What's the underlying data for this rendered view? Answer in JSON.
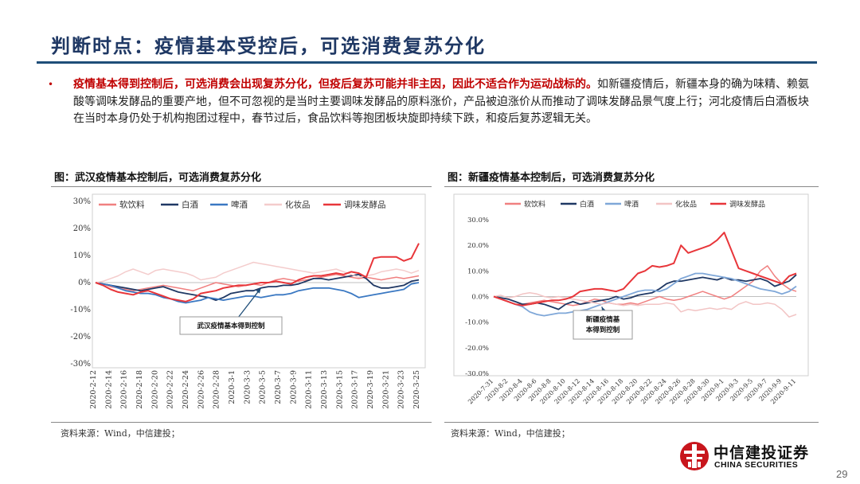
{
  "page": {
    "title": "判断时点：疫情基本受控后，可选消费复苏分化",
    "bullet_symbol": "•",
    "bullet_highlight": "疫情基本得到控制后，可选消费会出现复苏分化，但疫后复苏可能并非主因，因此不适合作为运动战标的。",
    "bullet_rest": "如新疆疫情后，新疆本身的确为味精、赖氨酸等调味发酵品的重要产地，但不可忽视的是当时主要调味发酵品的原料涨价，产品被迫涨价从而推动了调味发酵品景气度上行；河北疫情后白酒板块在当时本身仍处于机构抱团过程中，春节过后，食品饮料等抱团板块旋即持续下跌，和疫后复苏逻辑无关。",
    "page_number": "29",
    "logo": {
      "cn": "中信建投证券",
      "en": "CHINA SECURITIES"
    }
  },
  "figures": {
    "left": {
      "title": "图：武汉疫情基本控制后，可选消费复苏分化",
      "source": "资料来源：Wind，中信建投；"
    },
    "right": {
      "title": "图：新疆疫情基本控制后，可选消费复苏分化",
      "source": "资料来源：Wind，中信建投；"
    }
  },
  "chart_data": [
    {
      "type": "line",
      "ylim": [
        -30,
        30
      ],
      "yticks": [
        -30,
        -20,
        -10,
        0,
        10,
        20,
        30
      ],
      "yticklabels": [
        "-30%",
        "-20%",
        "-10%",
        "0%",
        "10%",
        "20%",
        "30%"
      ],
      "xticklabels": [
        "2020-2-12",
        "2020-2-14",
        "2020-2-16",
        "2020-2-18",
        "2020-2-20",
        "2020-2-22",
        "2020-2-24",
        "2020-2-26",
        "2020-2-28",
        "2020-3-1",
        "2020-3-3",
        "2020-3-5",
        "2020-3-7",
        "2020-3-9",
        "2020-3-11",
        "2020-3-13",
        "2020-3-15",
        "2020-3-17",
        "2020-3-19",
        "2020-3-21",
        "2020-3-23",
        "2020-3-25"
      ],
      "x": [
        0,
        1,
        2,
        3,
        4,
        5,
        6,
        7,
        8,
        9,
        10,
        11,
        12,
        13,
        14,
        15,
        16,
        17,
        18,
        19,
        20,
        21,
        22,
        23,
        24,
        25,
        26,
        27,
        28,
        29,
        30,
        31,
        32,
        33,
        34,
        35,
        36,
        37,
        38,
        39,
        40,
        41,
        42,
        43
      ],
      "legend_position": "top",
      "grid": false,
      "annotation": {
        "text": "武汉疫情基本得到控制",
        "at_x": 22,
        "at_y": -2.0
      },
      "series": [
        {
          "name": "软饮料",
          "color": "#f08080",
          "width": 1.5,
          "values": [
            0,
            -0.5,
            -1.5,
            -2,
            -2.5,
            -3,
            -2.5,
            -2,
            -1.5,
            -1,
            -1.5,
            -2,
            -2.5,
            -3,
            -2,
            -1,
            0,
            -0.5,
            -1,
            -1.5,
            -1,
            -0.5,
            -1,
            0,
            1,
            1.5,
            1,
            0.5,
            1,
            1.5,
            2,
            2.5,
            3,
            2.5,
            2,
            1.5,
            2,
            1.5,
            1,
            1.5,
            2,
            1.5,
            2,
            2.5
          ]
        },
        {
          "name": "白酒",
          "color": "#1f3864",
          "width": 1.8,
          "values": [
            0,
            -0.5,
            -1,
            -1.5,
            -2,
            -2.5,
            -3,
            -2.5,
            -2,
            -1.5,
            -2.5,
            -3.5,
            -4,
            -4.5,
            -5,
            -5.5,
            -6.5,
            -5.5,
            -4,
            -3.5,
            -3,
            -3,
            -2,
            -1.5,
            -1.5,
            -1,
            -1,
            -0.5,
            0.5,
            1.5,
            1.5,
            1,
            1.5,
            2,
            2.5,
            3,
            1.5,
            -1,
            -2,
            -2,
            -1.5,
            -1,
            0.5,
            1
          ]
        },
        {
          "name": "啤酒",
          "color": "#3a78c2",
          "width": 1.8,
          "values": [
            0,
            -0.5,
            -1,
            -2,
            -3,
            -3.5,
            -4,
            -4,
            -4.5,
            -5.5,
            -6,
            -7,
            -7.5,
            -7,
            -6.5,
            -5.5,
            -6,
            -6.5,
            -6,
            -5.5,
            -5,
            -5,
            -5.5,
            -5,
            -4.5,
            -4.5,
            -4,
            -3,
            -2.5,
            -2,
            -2,
            -2,
            -2.5,
            -3,
            -4,
            -5.5,
            -5,
            -4.5,
            -4,
            -3.5,
            -3,
            -2.5,
            -0.5,
            0
          ]
        },
        {
          "name": "化妆品",
          "color": "#f4cccc",
          "width": 1.5,
          "values": [
            0,
            0.5,
            1.5,
            2.5,
            4,
            5,
            4,
            3,
            4.5,
            5,
            4.5,
            4,
            3.5,
            2.5,
            1,
            1.5,
            2,
            3.5,
            4.5,
            5.5,
            6.5,
            7.5,
            7,
            6.5,
            6,
            5.5,
            5,
            4.5,
            4,
            3.5,
            4,
            4.5,
            5,
            4,
            3,
            2,
            2.5,
            3,
            4,
            4.5,
            5,
            4.5,
            3.5,
            4.5
          ]
        },
        {
          "name": "调味发酵品",
          "color": "#e8363a",
          "width": 2.0,
          "values": [
            0,
            -1,
            -2.5,
            -3.5,
            -4,
            -4.5,
            -3.5,
            -3,
            -4,
            -5,
            -6,
            -6.5,
            -7,
            -6,
            -4,
            -3.5,
            -3,
            -2,
            -1.5,
            -1,
            -1,
            -0.5,
            0,
            0,
            0.5,
            0,
            -0.5,
            1,
            2,
            2.5,
            2.5,
            3,
            3.5,
            3,
            4,
            3.5,
            2,
            9,
            9.5,
            9.5,
            9.5,
            8,
            9,
            14.5
          ]
        }
      ]
    },
    {
      "type": "line",
      "ylim": [
        -30,
        30
      ],
      "yticks": [
        -30,
        -20,
        -10,
        0,
        10,
        20,
        30
      ],
      "yticklabels": [
        "-30.0%",
        "-20.0%",
        "-10.0%",
        "0.0%",
        "10.0%",
        "20.0%",
        "30.0%"
      ],
      "xticklabels": [
        "2020-7-31",
        "2020-8-2",
        "2020-8-4",
        "2020-8-6",
        "2020-8-8",
        "2020-8-10",
        "2020-8-12",
        "2020-8-14",
        "2020-8-16",
        "2020-8-18",
        "2020-8-20",
        "2020-8-22",
        "2020-8-24",
        "2020-8-26",
        "2020-8-28",
        "2020-8-30",
        "2020-9-1",
        "2020-9-3",
        "2020-9-5",
        "2020-9-7",
        "2020-9-9",
        "2020-9-11"
      ],
      "x": [
        0,
        1,
        2,
        3,
        4,
        5,
        6,
        7,
        8,
        9,
        10,
        11,
        12,
        13,
        14,
        15,
        16,
        17,
        18,
        19,
        20,
        21,
        22,
        23,
        24,
        25,
        26,
        27,
        28,
        29,
        30,
        31,
        32,
        33,
        34,
        35,
        36,
        37,
        38,
        39,
        40,
        41,
        42
      ],
      "legend_position": "top",
      "grid": false,
      "annotation": {
        "text": "新疆疫情基本得到控制",
        "at_x": 15,
        "at_y": -4.0
      },
      "series": [
        {
          "name": "软饮料",
          "color": "#f08080",
          "width": 1.5,
          "values": [
            0,
            -1,
            -2,
            -3,
            -3,
            -2.5,
            -2,
            -1.5,
            -2,
            -2.5,
            -3,
            -3.5,
            -3,
            -2,
            -1,
            -1.5,
            -2.5,
            -3,
            -3,
            -2.5,
            -3,
            -2,
            -1,
            0,
            -1,
            -1.5,
            -1,
            0,
            1,
            2,
            1,
            0,
            -1,
            0,
            2,
            4,
            6,
            10,
            12,
            8,
            5,
            3,
            2
          ]
        },
        {
          "name": "白酒",
          "color": "#1f3864",
          "width": 1.8,
          "values": [
            0,
            -0.5,
            -1,
            -2,
            -3,
            -3,
            -2.5,
            -3,
            -4,
            -5,
            -3,
            -2,
            -3,
            -2.5,
            -2,
            -1.5,
            -1,
            0,
            -1,
            -0.5,
            0.5,
            1,
            1.5,
            3,
            5,
            6,
            6,
            6.5,
            7,
            7.5,
            7,
            6.5,
            7.5,
            6.5,
            6.5,
            6,
            6.5,
            7,
            6,
            4,
            5,
            6,
            8.5
          ]
        },
        {
          "name": "啤酒",
          "color": "#7fa7d8",
          "width": 1.8,
          "values": [
            0,
            -1,
            -2,
            -3,
            -4,
            -6,
            -7,
            -7.5,
            -7,
            -6.5,
            -6.5,
            -6,
            -5.5,
            -5,
            -4,
            -3,
            -2,
            -1,
            0,
            1,
            2,
            2.5,
            2.5,
            2,
            3,
            5,
            7,
            8,
            9,
            9,
            8.5,
            8,
            7.5,
            7,
            6,
            5,
            4,
            3,
            2.5,
            2,
            1,
            2,
            4
          ]
        },
        {
          "name": "化妆品",
          "color": "#f2c4c4",
          "width": 1.5,
          "values": [
            0,
            0.5,
            -0.5,
            0,
            1,
            1.5,
            1,
            0,
            -0.5,
            0,
            -0.5,
            -1,
            -1.5,
            -2,
            -2.5,
            -3,
            -2.5,
            -3,
            -3.5,
            -3,
            -3.5,
            -3,
            -3,
            -3,
            -2.5,
            -3,
            -6,
            -5,
            -5.5,
            -5,
            -4.5,
            -5,
            -4.5,
            -5,
            -3,
            -2,
            -3,
            -3,
            -2.5,
            -3,
            -5,
            -8,
            -7
          ]
        },
        {
          "name": "调味发酵品",
          "color": "#e8363a",
          "width": 2.0,
          "values": [
            0,
            -1,
            -2,
            -3,
            -3.5,
            -3,
            -2.5,
            -2,
            -1.5,
            -1.5,
            -1,
            0,
            2,
            2.5,
            3,
            3,
            2.5,
            2,
            3,
            6,
            9,
            10,
            12,
            11.5,
            12,
            13,
            20,
            17,
            18,
            19,
            20,
            22,
            25,
            18,
            11,
            10,
            9,
            8,
            7,
            6,
            5,
            8,
            9
          ]
        }
      ]
    }
  ]
}
